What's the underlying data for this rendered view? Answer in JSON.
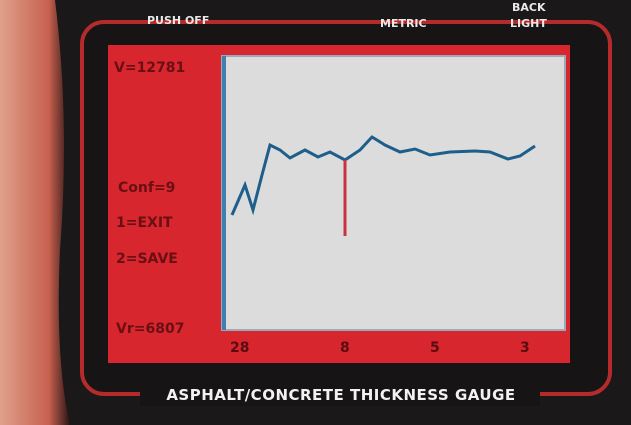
{
  "device": {
    "buttons": {
      "push_off": "PUSH OFF",
      "metric": "METRIC",
      "back": "BACK",
      "light": "LIGHT"
    },
    "screen": {
      "side_labels": [
        "V=12781",
        "Conf=9",
        "1=EXIT",
        "2=SAVE",
        "Vr=6807"
      ],
      "axis_labels": [
        "28",
        "8",
        "5",
        "3"
      ]
    },
    "footer": "ASPHALT/CONCRETE THICKNESS GAUGE"
  }
}
